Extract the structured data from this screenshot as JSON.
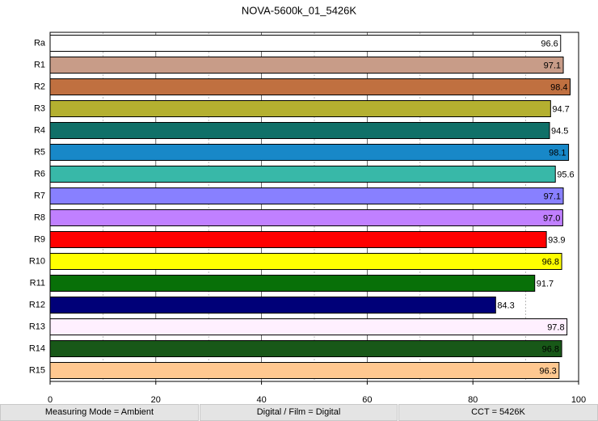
{
  "chart_data": {
    "type": "barh",
    "title": "NOVA-5600k_01_5426K",
    "categories": [
      "Ra",
      "R1",
      "R2",
      "R3",
      "R4",
      "R5",
      "R6",
      "R7",
      "R8",
      "R9",
      "R10",
      "R11",
      "R12",
      "R13",
      "R14",
      "R15"
    ],
    "values": [
      96.6,
      97.1,
      98.4,
      94.7,
      94.5,
      98.1,
      95.6,
      97.1,
      97.0,
      93.9,
      96.8,
      91.7,
      84.3,
      97.8,
      96.8,
      96.3
    ],
    "value_labels": [
      "96.6",
      "97.1",
      "98.4",
      "94.7",
      "94.5",
      "98.1",
      "95.6",
      "97.1",
      "97.0",
      "93.9",
      "96.8",
      "91.7",
      "84.3",
      "97.8",
      "96.8",
      "96.3"
    ],
    "colors": [
      "#ffffff",
      "#c89c88",
      "#c07040",
      "#b4b030",
      "#107068",
      "#1888c8",
      "#38b8a8",
      "#8880ff",
      "#c080ff",
      "#ff0000",
      "#ffff00",
      "#087008",
      "#000078",
      "#fff0ff",
      "#185818",
      "#ffc890"
    ],
    "xlim": [
      0,
      100
    ],
    "xticks": [
      0,
      20,
      40,
      60,
      80,
      100
    ],
    "xminor": [
      10,
      30,
      50,
      70,
      90
    ],
    "grid": true
  },
  "footer": [
    "Measuring Mode = Ambient",
    "Digital / Film = Digital",
    "CCT = 5426K"
  ]
}
